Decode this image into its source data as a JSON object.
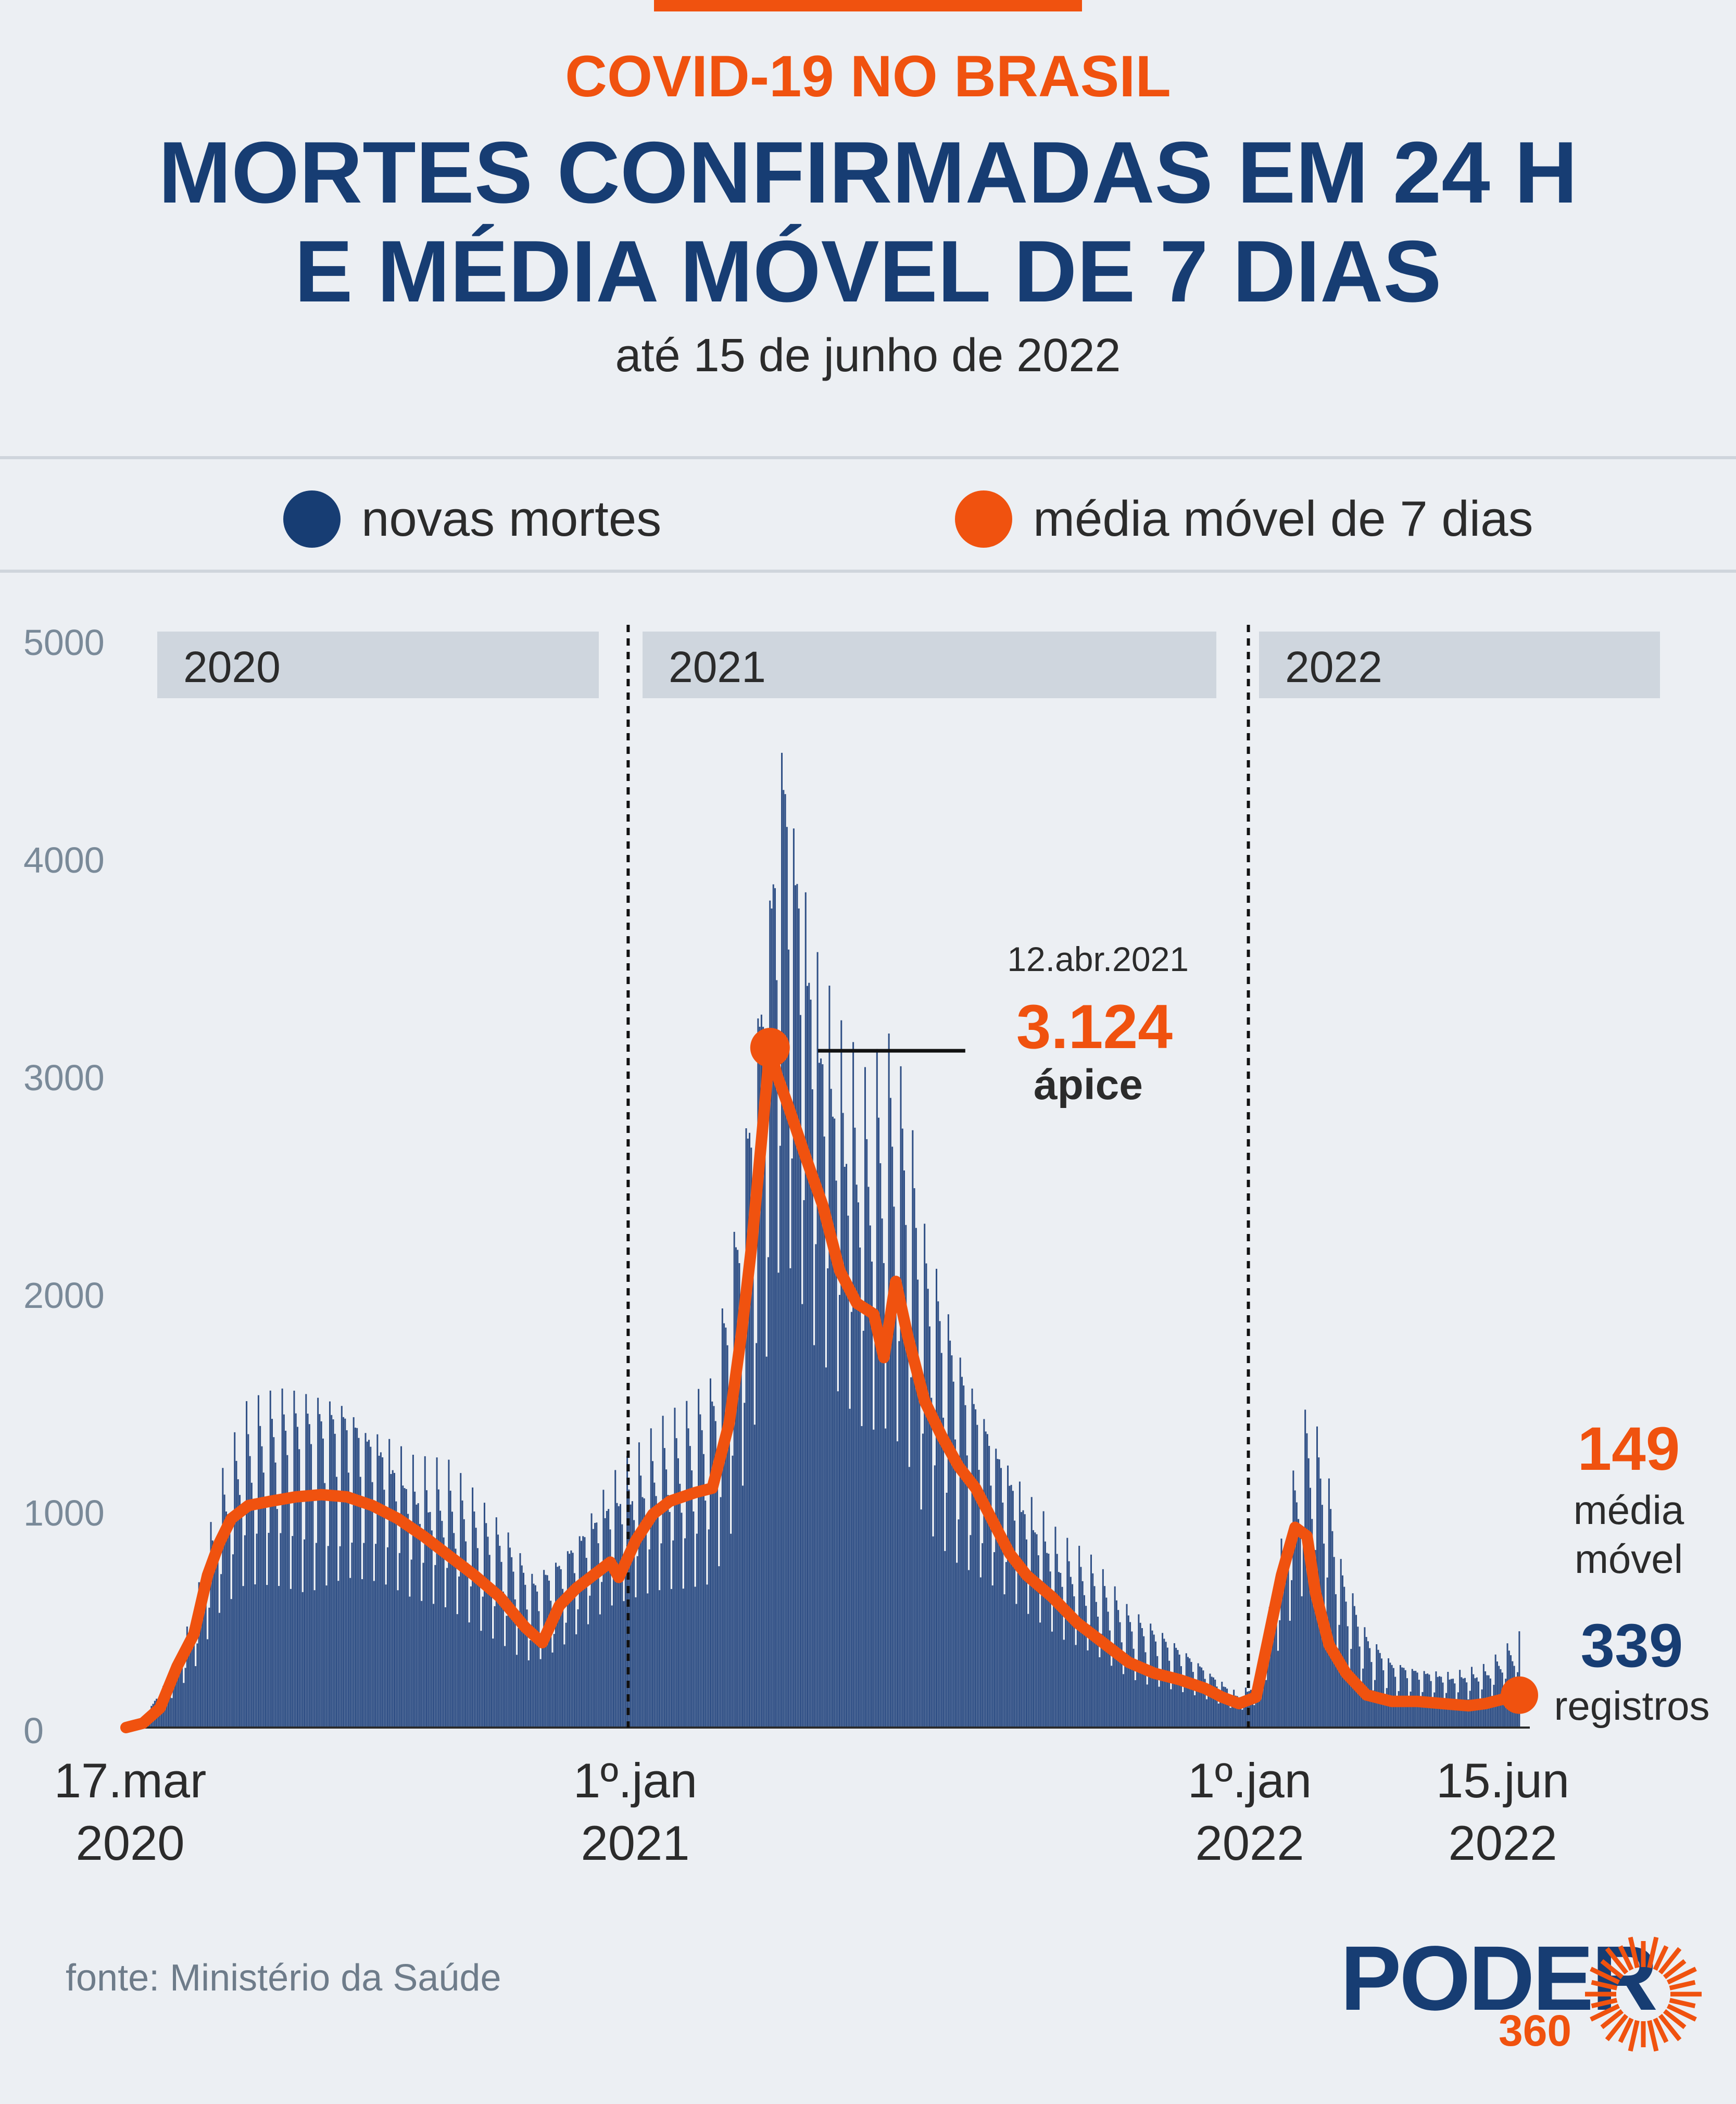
{
  "colors": {
    "background": "#eceff3",
    "accent_orange": "#f0520f",
    "navy": "#173d73",
    "bar_blue": "#2f4f85",
    "year_band": "#cfd6de",
    "axis_text": "#7a8a99"
  },
  "header": {
    "kicker": "COVID-19 NO BRASIL",
    "title_line1": "MORTES CONFIRMADAS EM 24 H",
    "title_line2": "E MÉDIA MÓVEL DE 7 DIAS",
    "subtitle": "até 15 de junho de 2022"
  },
  "legend": {
    "series1_label": "novas mortes",
    "series2_label": "média móvel de 7 dias"
  },
  "chart_data": {
    "type": "bar",
    "title": "MORTES CONFIRMADAS EM 24 H E MÉDIA MÓVEL DE 7 DIAS",
    "subtitle": "até 15 de junho de 2022",
    "ylim": [
      0,
      5000
    ],
    "yticks": [
      "0",
      "1000",
      "2000",
      "3000",
      "4000",
      "5000"
    ],
    "ytick_values": [
      0,
      1000,
      2000,
      3000,
      4000,
      5000
    ],
    "x_range_days": [
      0,
      820
    ],
    "x_ticks": [
      {
        "day": 0,
        "line1": "17.mar",
        "line2": "2020"
      },
      {
        "day": 290,
        "line1": "1º.jan",
        "line2": "2021"
      },
      {
        "day": 655,
        "line1": "1º.jan",
        "line2": "2022"
      },
      {
        "day": 820,
        "line1": "15.jun",
        "line2": "2022"
      }
    ],
    "year_bands": [
      {
        "label": "2020",
        "start": 0,
        "end": 290
      },
      {
        "label": "2021",
        "start": 290,
        "end": 655
      },
      {
        "label": "2022",
        "start": 655,
        "end": 820
      }
    ],
    "series": [
      {
        "name": "novas mortes",
        "type": "bar",
        "envelope_points": [
          [
            0,
            0
          ],
          [
            10,
            30
          ],
          [
            25,
            200
          ],
          [
            40,
            450
          ],
          [
            55,
            900
          ],
          [
            70,
            1150
          ],
          [
            90,
            1200
          ],
          [
            110,
            1210
          ],
          [
            130,
            1240
          ],
          [
            150,
            1150
          ],
          [
            170,
            1000
          ],
          [
            190,
            950
          ],
          [
            210,
            800
          ],
          [
            225,
            700
          ],
          [
            240,
            560
          ],
          [
            255,
            650
          ],
          [
            270,
            800
          ],
          [
            285,
            950
          ],
          [
            300,
            1020
          ],
          [
            315,
            1100
          ],
          [
            330,
            1150
          ],
          [
            345,
            1250
          ],
          [
            360,
            1900
          ],
          [
            372,
            2700
          ],
          [
            380,
            3300
          ],
          [
            386,
            3900
          ],
          [
            395,
            3500
          ],
          [
            405,
            3000
          ],
          [
            420,
            2600
          ],
          [
            435,
            2350
          ],
          [
            450,
            2450
          ],
          [
            460,
            2250
          ],
          [
            470,
            1800
          ],
          [
            490,
            1400
          ],
          [
            510,
            1150
          ],
          [
            530,
            900
          ],
          [
            550,
            700
          ],
          [
            570,
            600
          ],
          [
            590,
            430
          ],
          [
            610,
            350
          ],
          [
            630,
            260
          ],
          [
            645,
            180
          ],
          [
            655,
            130
          ],
          [
            665,
            180
          ],
          [
            675,
            500
          ],
          [
            685,
            850
          ],
          [
            695,
            1150
          ],
          [
            705,
            1000
          ],
          [
            715,
            600
          ],
          [
            730,
            350
          ],
          [
            745,
            250
          ],
          [
            760,
            230
          ],
          [
            780,
            210
          ],
          [
            800,
            230
          ],
          [
            810,
            280
          ],
          [
            820,
            339
          ]
        ]
      },
      {
        "name": "média móvel de 7 dias",
        "type": "line",
        "points": [
          [
            0,
            0
          ],
          [
            10,
            20
          ],
          [
            20,
            90
          ],
          [
            30,
            280
          ],
          [
            40,
            430
          ],
          [
            48,
            700
          ],
          [
            55,
            850
          ],
          [
            62,
            960
          ],
          [
            72,
            1020
          ],
          [
            85,
            1040
          ],
          [
            100,
            1060
          ],
          [
            115,
            1070
          ],
          [
            130,
            1060
          ],
          [
            145,
            1020
          ],
          [
            160,
            960
          ],
          [
            175,
            880
          ],
          [
            190,
            790
          ],
          [
            205,
            700
          ],
          [
            220,
            600
          ],
          [
            235,
            460
          ],
          [
            245,
            390
          ],
          [
            255,
            560
          ],
          [
            265,
            640
          ],
          [
            275,
            700
          ],
          [
            285,
            760
          ],
          [
            290,
            690
          ],
          [
            300,
            860
          ],
          [
            310,
            980
          ],
          [
            320,
            1040
          ],
          [
            335,
            1080
          ],
          [
            345,
            1100
          ],
          [
            355,
            1400
          ],
          [
            362,
            1800
          ],
          [
            368,
            2200
          ],
          [
            374,
            2700
          ],
          [
            379,
            3124
          ],
          [
            383,
            3000
          ],
          [
            390,
            2850
          ],
          [
            400,
            2620
          ],
          [
            410,
            2400
          ],
          [
            420,
            2100
          ],
          [
            430,
            1950
          ],
          [
            440,
            1900
          ],
          [
            446,
            1700
          ],
          [
            453,
            2050
          ],
          [
            460,
            1800
          ],
          [
            470,
            1500
          ],
          [
            480,
            1340
          ],
          [
            490,
            1200
          ],
          [
            500,
            1100
          ],
          [
            510,
            950
          ],
          [
            520,
            800
          ],
          [
            530,
            700
          ],
          [
            545,
            600
          ],
          [
            560,
            480
          ],
          [
            575,
            390
          ],
          [
            590,
            300
          ],
          [
            605,
            250
          ],
          [
            620,
            220
          ],
          [
            635,
            180
          ],
          [
            645,
            140
          ],
          [
            655,
            110
          ],
          [
            665,
            140
          ],
          [
            672,
            400
          ],
          [
            680,
            700
          ],
          [
            688,
            920
          ],
          [
            695,
            880
          ],
          [
            700,
            620
          ],
          [
            708,
            380
          ],
          [
            718,
            250
          ],
          [
            730,
            150
          ],
          [
            745,
            120
          ],
          [
            760,
            120
          ],
          [
            775,
            110
          ],
          [
            790,
            100
          ],
          [
            800,
            110
          ],
          [
            810,
            130
          ],
          [
            820,
            149
          ]
        ]
      }
    ],
    "annotations": {
      "peak": {
        "day": 379,
        "value": 3124,
        "date": "12.abr.2021",
        "value_label": "3.124",
        "label": "ápice"
      },
      "last_moving_average": {
        "day": 820,
        "value": 149,
        "value_label": "149",
        "label_line1": "média",
        "label_line2": "móvel"
      },
      "last_registros": {
        "day": 820,
        "value": 339,
        "value_label": "339",
        "label": "registros"
      }
    }
  },
  "footer": {
    "source": "fonte: Ministério da Saúde",
    "logo_word": "PODER",
    "logo_number": "360"
  }
}
